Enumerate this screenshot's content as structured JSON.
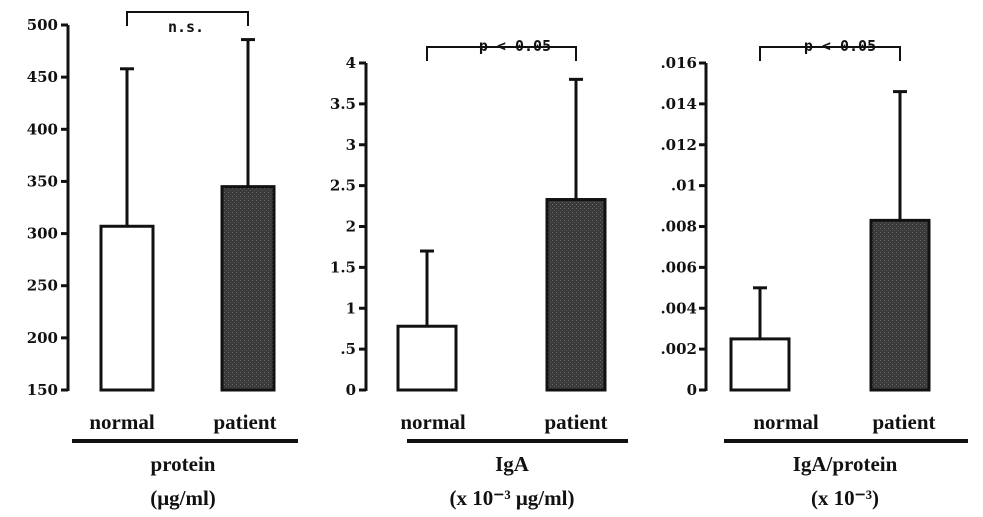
{
  "colors": {
    "normal": "#ffffff",
    "patient": "#3a3a3a",
    "stroke": "#111111"
  },
  "chart_data": [
    {
      "type": "bar",
      "categories": [
        "normal",
        "patient"
      ],
      "values": [
        307,
        345
      ],
      "error_upper": [
        458,
        486
      ],
      "ylim": [
        150,
        500
      ],
      "yticks": [
        "150",
        "200",
        "250",
        "300",
        "350",
        "400",
        "450",
        "500"
      ],
      "significance": "n.s.",
      "group_label": "protein",
      "unit_label": "(μg/ml)"
    },
    {
      "type": "bar",
      "categories": [
        "normal",
        "patient"
      ],
      "values": [
        0.78,
        2.33
      ],
      "error_upper": [
        1.7,
        3.8
      ],
      "ylim": [
        0,
        4
      ],
      "yticks": [
        "0",
        ".5",
        "1",
        "1.5",
        "2",
        "2.5",
        "3",
        "3.5",
        "4"
      ],
      "significance": "p < 0.05",
      "group_label": "IgA",
      "unit_label": "(x 10⁻³ μg/ml)"
    },
    {
      "type": "bar",
      "categories": [
        "normal",
        "patient"
      ],
      "values": [
        0.0025,
        0.0083
      ],
      "error_upper": [
        0.005,
        0.0146
      ],
      "ylim": [
        0,
        0.016
      ],
      "yticks": [
        "0",
        ".002",
        ".004",
        ".006",
        ".008",
        ".01",
        ".012",
        ".014",
        ".016"
      ],
      "significance": "p < 0.05",
      "group_label": "IgA/protein",
      "unit_label": "(x 10⁻³)"
    }
  ]
}
